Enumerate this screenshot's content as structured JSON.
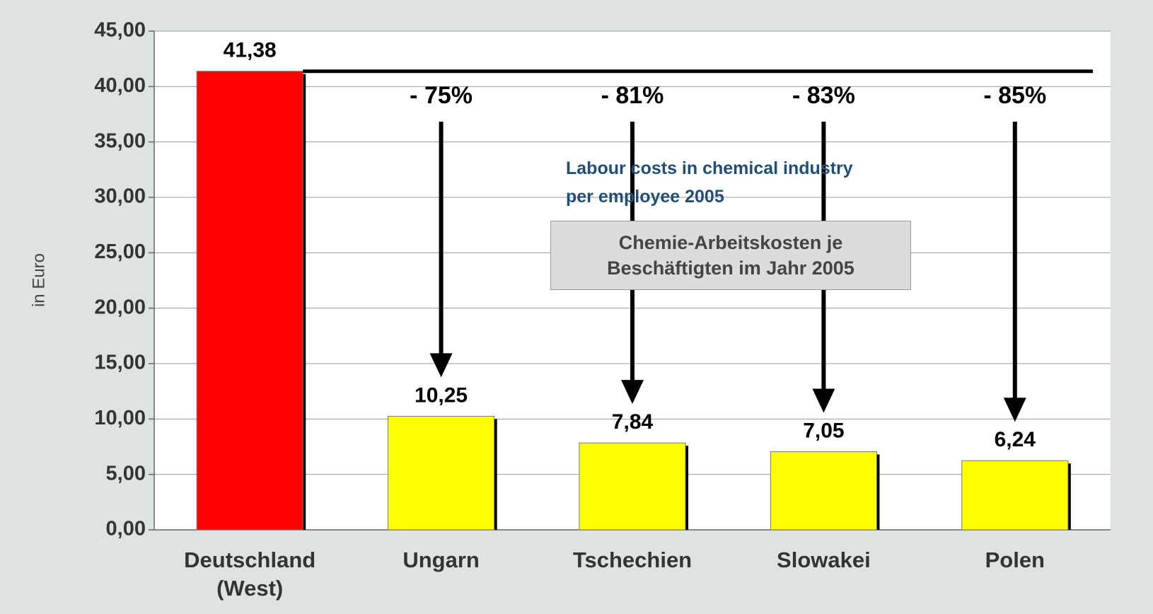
{
  "chart_data": {
    "type": "bar",
    "categories": [
      "Deutschland (West)",
      "Ungarn",
      "Tschechien",
      "Slowakei",
      "Polen"
    ],
    "values": [
      41.38,
      10.25,
      7.84,
      7.05,
      6.24
    ],
    "value_labels": [
      "41,38",
      "10,25",
      "7,84",
      "7,05",
      "6,24"
    ],
    "colors": [
      "#ff0000",
      "#ffff00",
      "#ffff00",
      "#ffff00",
      "#ffff00"
    ],
    "ylabel": "in Euro",
    "ylim": [
      0,
      45
    ],
    "yticks": [
      {
        "value": 0,
        "label": "0,00"
      },
      {
        "value": 5,
        "label": "5,00"
      },
      {
        "value": 10,
        "label": "10,00"
      },
      {
        "value": 15,
        "label": "15,00"
      },
      {
        "value": 20,
        "label": "20,00"
      },
      {
        "value": 25,
        "label": "25,00"
      },
      {
        "value": 30,
        "label": "30,00"
      },
      {
        "value": 35,
        "label": "35,00"
      },
      {
        "value": 40,
        "label": "40,00"
      },
      {
        "value": 45,
        "label": "45,00"
      }
    ],
    "grid": true,
    "annotations": [
      "- 75%",
      "- 81%",
      "- 83%",
      "- 85%"
    ],
    "note_en": "Labour costs in chemical industry per employee 2005",
    "note_de": "Chemie-Arbeitskosten je Beschäftigten im Jahr 2005"
  }
}
